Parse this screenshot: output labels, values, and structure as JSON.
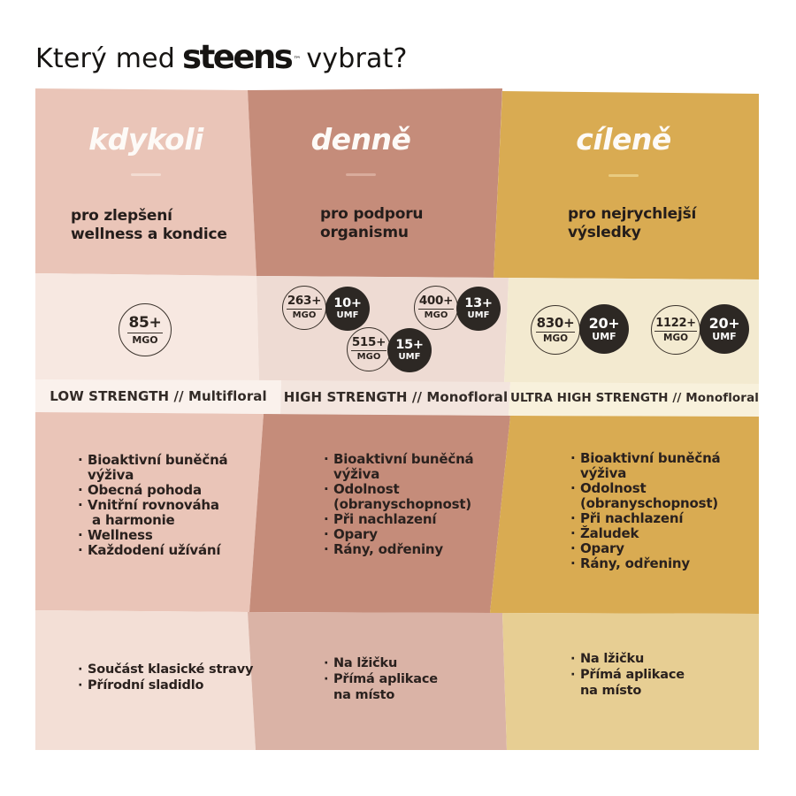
{
  "title": {
    "prefix": "Který med",
    "brand": "steens",
    "trademark": "™",
    "suffix": "vybrat?"
  },
  "palette": {
    "col1": "#eac5b8",
    "col1_light": "#f7e8e1",
    "col1_lighter": "#faf1ec",
    "col1_bottom": "#f3dfd6",
    "col2": "#c58c7a",
    "col2_light": "#eedbd3",
    "col2_lighter": "#f3e5de",
    "col2_bottom": "#dab3a6",
    "col3": "#d9ab52",
    "col3_light": "#f3ead0",
    "col3_lighter": "#f8f1dc",
    "col3_bottom": "#e7ce93",
    "dark": "#2d2824",
    "ink": "#161412",
    "dash1": "#f3dcd2",
    "dash2": "#d9ac9c",
    "dash3": "#e8cb80"
  },
  "columns": [
    {
      "header": "kdykoli",
      "subtitle": "pro zlepšení\nwellness a kondice",
      "badges": [
        {
          "value": "85+",
          "unit": "MGO"
        }
      ],
      "strength": "LOW STRENGTH // Multifloral",
      "benefits": [
        "Bioaktivní buněčná\nvýživa",
        "Obecná pohoda",
        "Vnitřní rovnováha\n a harmonie",
        "Wellness",
        "Každodení užívání"
      ],
      "usage": [
        "Součást klasické stravy",
        "Přírodní sladidlo"
      ]
    },
    {
      "header": "denně",
      "subtitle": "pro podporu\norganismu",
      "badges": [
        {
          "value": "263+",
          "unit": "MGO"
        },
        {
          "value": "10+",
          "unit": "UMF"
        },
        {
          "value": "400+",
          "unit": "MGO"
        },
        {
          "value": "13+",
          "unit": "UMF"
        },
        {
          "value": "515+",
          "unit": "MGO"
        },
        {
          "value": "15+",
          "unit": "UMF"
        }
      ],
      "strength": "HIGH STRENGTH // Monofloral",
      "benefits": [
        "Bioaktivní buněčná\nvýživa",
        "Odolnost\n(obranyschopnost)",
        "Při nachlazení",
        "Opary",
        "Rány, odřeniny"
      ],
      "usage": [
        "Na lžičku",
        "Přímá aplikace\nna místo"
      ]
    },
    {
      "header": "cíleně",
      "subtitle": "pro nejrychlejší\nvýsledky",
      "badges": [
        {
          "value": "830+",
          "unit": "MGO"
        },
        {
          "value": "20+",
          "unit": "UMF"
        },
        {
          "value": "1122+",
          "unit": "MGO"
        },
        {
          "value": "20+",
          "unit": "UMF"
        }
      ],
      "strength": "ULTRA HIGH STRENGTH // Monofloral",
      "benefits": [
        "Bioaktivní buněčná\nvýživa",
        "Odolnost\n(obranyschopnost)",
        "Při nachlazení",
        "Žaludek",
        "Opary",
        "Rány, odřeniny"
      ],
      "usage": [
        "Na lžičku",
        "Přímá aplikace\nna místo"
      ]
    }
  ]
}
